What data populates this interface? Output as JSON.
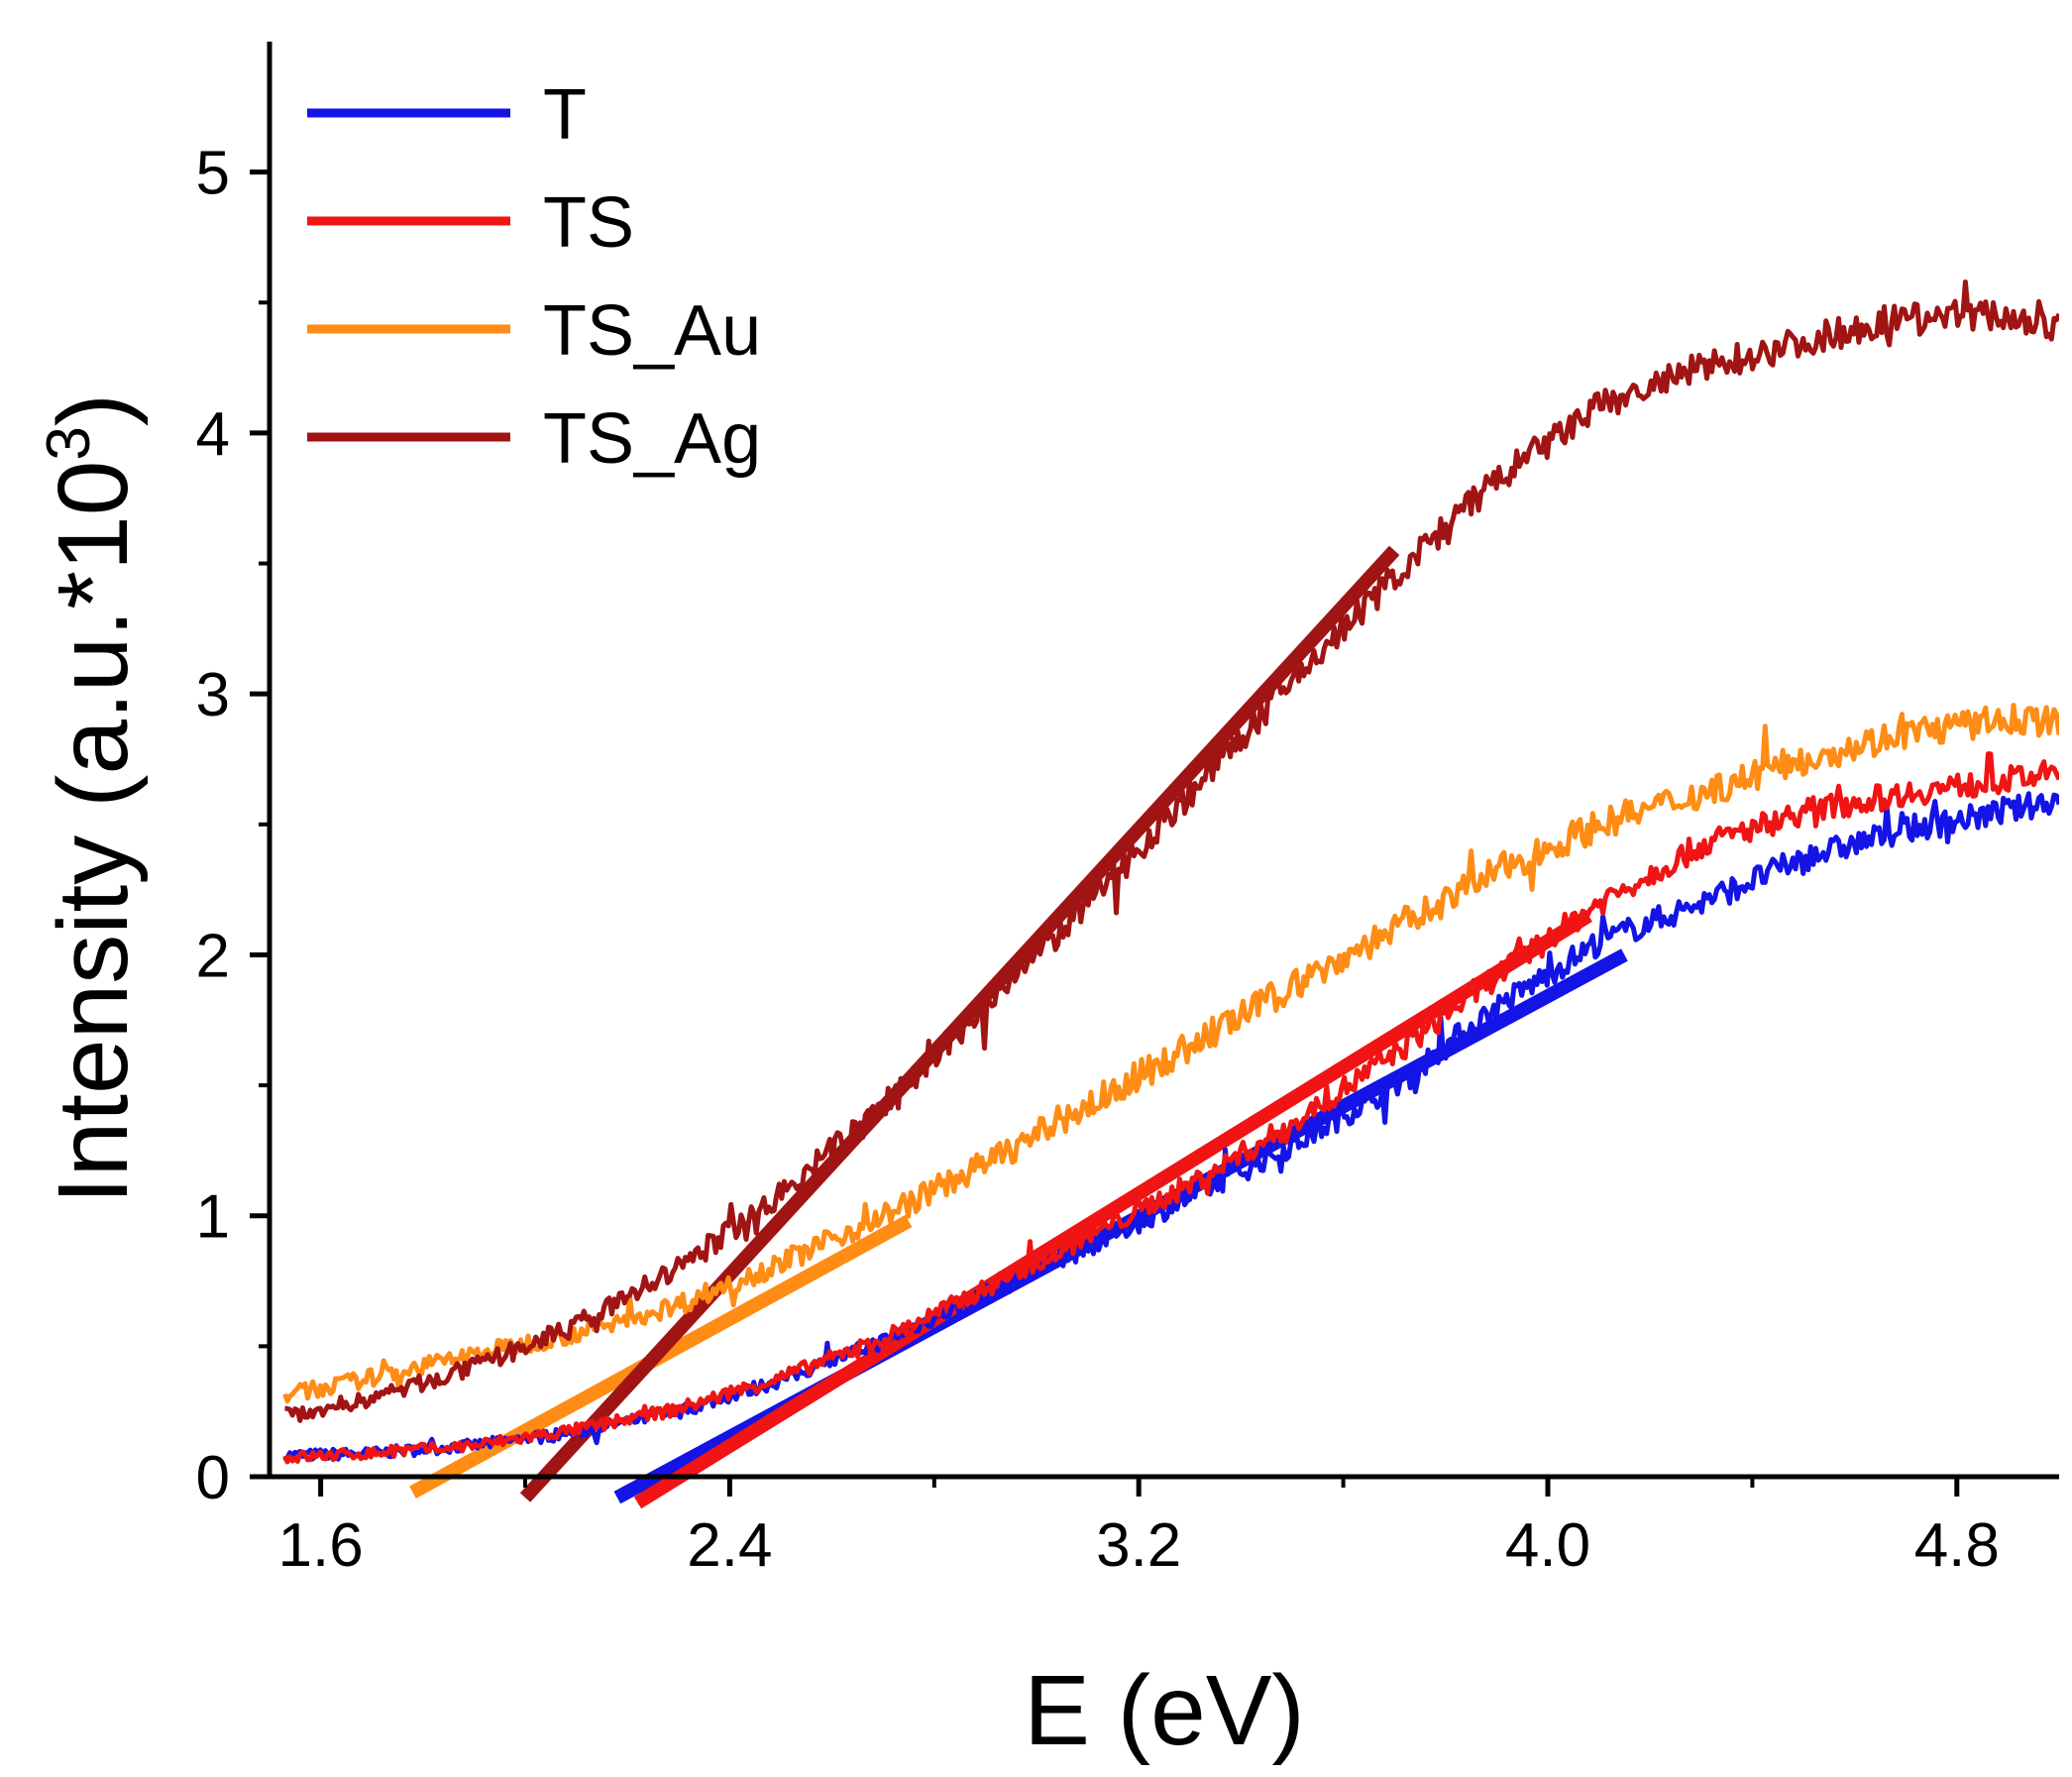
{
  "chart_data": {
    "type": "line",
    "title": "",
    "xlabel": "E (eV)",
    "ylabel": "Intensity (a.u.*10",
    "ylabel_superscript": "3",
    "ylabel_suffix": ")",
    "xlim": [
      1.5,
      5.0
    ],
    "ylim": [
      0,
      5.5
    ],
    "xticks": [
      1.6,
      2.4,
      3.2,
      4.0,
      4.8
    ],
    "xtick_labels": [
      "1.6",
      "2.4",
      "3.2",
      "4.0",
      "4.8"
    ],
    "xminor": [
      2.0,
      2.8,
      3.6,
      4.4
    ],
    "yticks": [
      0,
      1,
      2,
      3,
      4,
      5
    ],
    "ytick_labels": [
      "0",
      "1",
      "2",
      "3",
      "4",
      "5"
    ],
    "yminor": [
      0.5,
      1.5,
      2.5,
      3.5,
      4.5
    ],
    "legend_position": "top-left",
    "series": [
      {
        "name": "T",
        "color": "#1414e6",
        "x": [
          1.5,
          1.7,
          1.9,
          2.1,
          2.3,
          2.5,
          2.7,
          2.9,
          3.1,
          3.3,
          3.5,
          3.7,
          3.9,
          4.1,
          4.3,
          4.5,
          4.7,
          4.9,
          5.0
        ],
        "y": [
          0.08,
          0.09,
          0.12,
          0.17,
          0.25,
          0.37,
          0.52,
          0.7,
          0.88,
          1.07,
          1.27,
          1.5,
          1.8,
          2.05,
          2.2,
          2.37,
          2.48,
          2.55,
          2.6
        ],
        "noise": 0.05
      },
      {
        "name": "TS",
        "color": "#f01414",
        "x": [
          1.5,
          1.7,
          1.9,
          2.1,
          2.3,
          2.5,
          2.7,
          2.9,
          3.1,
          3.3,
          3.5,
          3.7,
          3.9,
          4.1,
          4.3,
          4.5,
          4.7,
          4.9,
          5.0
        ],
        "y": [
          0.07,
          0.09,
          0.12,
          0.18,
          0.26,
          0.38,
          0.53,
          0.72,
          0.92,
          1.12,
          1.35,
          1.62,
          1.92,
          2.2,
          2.42,
          2.55,
          2.62,
          2.67,
          2.7
        ],
        "noise": 0.05
      },
      {
        "name": "TS_Au",
        "color": "#ff8c14",
        "x": [
          1.5,
          1.7,
          1.9,
          2.1,
          2.3,
          2.5,
          2.7,
          2.9,
          3.1,
          3.3,
          3.5,
          3.7,
          3.9,
          4.1,
          4.3,
          4.5,
          4.7,
          4.9,
          5.0
        ],
        "y": [
          0.3,
          0.38,
          0.47,
          0.55,
          0.66,
          0.82,
          1.0,
          1.2,
          1.42,
          1.65,
          1.88,
          2.1,
          2.32,
          2.5,
          2.62,
          2.75,
          2.85,
          2.9,
          2.9
        ],
        "noise": 0.06
      },
      {
        "name": "TS_Ag",
        "color": "#a01414",
        "x": [
          1.5,
          1.7,
          1.9,
          2.1,
          2.3,
          2.5,
          2.7,
          2.9,
          3.1,
          3.3,
          3.5,
          3.7,
          3.9,
          4.1,
          4.3,
          4.5,
          4.7,
          4.9,
          5.0
        ],
        "y": [
          0.22,
          0.3,
          0.42,
          0.58,
          0.8,
          1.08,
          1.42,
          1.8,
          2.2,
          2.62,
          3.05,
          3.45,
          3.82,
          4.1,
          4.25,
          4.35,
          4.45,
          4.45,
          4.4
        ],
        "noise": 0.06
      }
    ],
    "fit_lines": [
      {
        "series": "T",
        "color": "#1414e6",
        "x": [
          2.18,
          4.15
        ],
        "y": [
          -0.08,
          2.0
        ]
      },
      {
        "series": "TS",
        "color": "#f01414",
        "x": [
          2.22,
          4.08
        ],
        "y": [
          -0.1,
          2.15
        ]
      },
      {
        "series": "TS_Au",
        "color": "#ff8c14",
        "x": [
          1.78,
          2.75
        ],
        "y": [
          -0.06,
          0.98
        ]
      },
      {
        "series": "TS_Ag",
        "color": "#a01414",
        "x": [
          2.0,
          3.7
        ],
        "y": [
          -0.08,
          3.55
        ]
      }
    ]
  }
}
